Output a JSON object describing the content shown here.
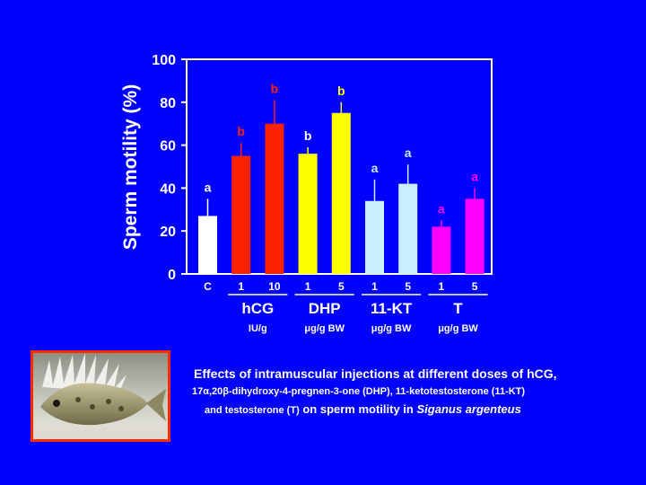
{
  "colors": {
    "background": "#0000ff",
    "axis": "#ffffff",
    "control": "#ffffff",
    "hcg": "#ff2200",
    "dhp": "#ffff00",
    "kt": "#c8f0ff",
    "t": "#ff00ff",
    "frame": "#ff2a00"
  },
  "chart_data": {
    "type": "bar",
    "ylabel": "Sperm motility (%)",
    "ylim": [
      0,
      100
    ],
    "yticks": [
      0,
      20,
      40,
      60,
      80,
      100
    ],
    "grid": false,
    "bars": [
      {
        "tick": "C",
        "group": "",
        "value": 27,
        "error": 8,
        "letter": "a",
        "color": "#ffffff",
        "letter_color": "#ffffff"
      },
      {
        "tick": "1",
        "group": "hCG",
        "value": 55,
        "error": 6,
        "letter": "b",
        "color": "#ff2200",
        "letter_color": "#ff2200"
      },
      {
        "tick": "10",
        "group": "hCG",
        "value": 70,
        "error": 11,
        "letter": "b",
        "color": "#ff2200",
        "letter_color": "#ff2200"
      },
      {
        "tick": "1",
        "group": "DHP",
        "value": 56,
        "error": 3,
        "letter": "b",
        "color": "#ffff00",
        "letter_color": "#ffffff"
      },
      {
        "tick": "5",
        "group": "DHP",
        "value": 75,
        "error": 5,
        "letter": "b",
        "color": "#ffff00",
        "letter_color": "#ffff00"
      },
      {
        "tick": "1",
        "group": "11-KT",
        "value": 34,
        "error": 10,
        "letter": "a",
        "color": "#c8f0ff",
        "letter_color": "#c8f0ff"
      },
      {
        "tick": "5",
        "group": "11-KT",
        "value": 42,
        "error": 9,
        "letter": "a",
        "color": "#c8f0ff",
        "letter_color": "#c8f0ff"
      },
      {
        "tick": "1",
        "group": "T",
        "value": 22,
        "error": 3,
        "letter": "a",
        "color": "#ff00ff",
        "letter_color": "#ff00ff"
      },
      {
        "tick": "5",
        "group": "T",
        "value": 35,
        "error": 5,
        "letter": "a",
        "color": "#ff00ff",
        "letter_color": "#ff00ff"
      }
    ],
    "groups": [
      {
        "name": "hCG",
        "unit": "IU/g",
        "first": 1,
        "last": 2
      },
      {
        "name": "DHP",
        "unit": "μg/g BW",
        "first": 3,
        "last": 4
      },
      {
        "name": "11-KT",
        "unit": "μg/g BW",
        "first": 5,
        "last": 6
      },
      {
        "name": "T",
        "unit": "μg/g BW",
        "first": 7,
        "last": 8
      }
    ]
  },
  "caption": {
    "line1": "Effects of intramuscular injections at different doses of hCG,",
    "line2": "17α,20β-dihydroxy-4-pregnen-3-one (DHP), 11-ketotestosterone (11-KT)",
    "line3_small": "and testosterone (T)",
    "line3_main": " on sperm motility in ",
    "line3_species": "Siganus argenteus"
  },
  "photo": {
    "icon": "fish-photo"
  }
}
